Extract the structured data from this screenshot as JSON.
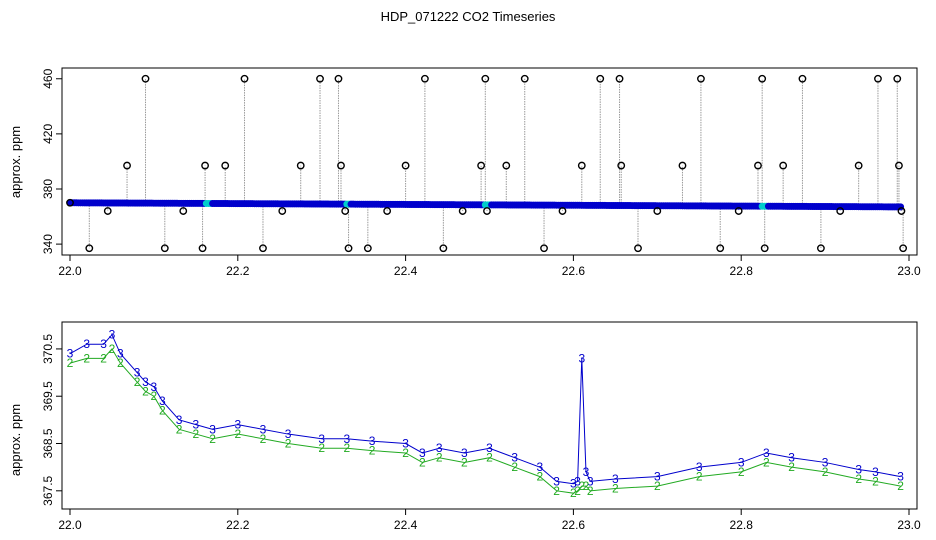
{
  "title": "HDP_071222  CO2 Timeseries",
  "colors": {
    "primary": "#0000cc",
    "secondary": "#22aa22",
    "highlight": "#00cccc",
    "spike": "#000000",
    "line": "#9a9a9a"
  },
  "chart_data": [
    {
      "type": "scatter",
      "title": "",
      "xlabel": "",
      "ylabel": "approx. ppm",
      "xlim": [
        22.0,
        23.0
      ],
      "ylim": [
        335,
        462
      ],
      "xticks": [
        22.0,
        22.2,
        22.4,
        22.6,
        22.8,
        23.0
      ],
      "yticks": [
        340,
        380,
        420,
        460
      ],
      "series": [
        {
          "marker": "filled-circle",
          "color": "#0000cc",
          "x_range": [
            22.0,
            22.99
          ],
          "values_start": 370,
          "values_end": 367
        },
        {
          "marker": "open-circle",
          "color": "#000000",
          "x": [
            22.0,
            22.023,
            22.045,
            22.068,
            22.09,
            22.113,
            22.135,
            22.158,
            22.161,
            22.185,
            22.208,
            22.23,
            22.253,
            22.275,
            22.298,
            22.32,
            22.323,
            22.328,
            22.332,
            22.355,
            22.378,
            22.4,
            22.423,
            22.445,
            22.468,
            22.49,
            22.495,
            22.497,
            22.52,
            22.542,
            22.565,
            22.587,
            22.61,
            22.632,
            22.655,
            22.657,
            22.677,
            22.7,
            22.73,
            22.752,
            22.775,
            22.797,
            22.82,
            22.825,
            22.828,
            22.85,
            22.873,
            22.895,
            22.918,
            22.94,
            22.963,
            22.986,
            22.988,
            22.991,
            22.993
          ],
          "values": [
            370,
            337,
            364,
            397,
            460,
            337,
            364,
            337,
            397,
            397,
            460,
            337,
            364,
            397,
            460,
            460,
            397,
            364,
            337,
            337,
            364,
            397,
            460,
            337,
            364,
            397,
            460,
            364,
            397,
            460,
            337,
            364,
            397,
            460,
            460,
            397,
            337,
            364,
            397,
            460,
            337,
            364,
            397,
            460,
            337,
            397,
            460,
            337,
            364,
            397,
            460,
            460,
            397,
            364,
            337
          ]
        }
      ]
    },
    {
      "type": "line",
      "title": "",
      "xlabel": "",
      "ylabel": "approx. ppm",
      "xlim": [
        22.0,
        23.0
      ],
      "ylim": [
        367.2,
        370.9
      ],
      "xticks": [
        22.0,
        22.2,
        22.4,
        22.6,
        22.8,
        23.0
      ],
      "yticks": [
        367.5,
        368.5,
        369.5,
        370.5
      ],
      "series": [
        {
          "label": "3",
          "color": "#0000cc",
          "x": [
            22.0,
            22.02,
            22.04,
            22.05,
            22.06,
            22.08,
            22.09,
            22.1,
            22.11,
            22.13,
            22.15,
            22.17,
            22.2,
            22.23,
            22.26,
            22.3,
            22.33,
            22.36,
            22.4,
            22.42,
            22.44,
            22.47,
            22.5,
            22.53,
            22.56,
            22.58,
            22.6,
            22.605,
            22.61,
            22.615,
            22.62,
            22.65,
            22.7,
            22.75,
            22.8,
            22.83,
            22.86,
            22.9,
            22.94,
            22.96,
            22.99
          ],
          "values": [
            370.4,
            370.6,
            370.6,
            370.8,
            370.4,
            370.0,
            369.8,
            369.7,
            369.4,
            369.0,
            368.9,
            368.8,
            368.9,
            368.8,
            368.7,
            368.6,
            368.6,
            368.55,
            368.5,
            368.3,
            368.4,
            368.3,
            368.4,
            368.2,
            368.0,
            367.7,
            367.65,
            367.7,
            370.3,
            367.9,
            367.7,
            367.75,
            367.8,
            368.0,
            368.1,
            368.3,
            368.2,
            368.1,
            367.95,
            367.9,
            367.8
          ]
        },
        {
          "label": "2",
          "color": "#22aa22",
          "x": [
            22.0,
            22.02,
            22.04,
            22.05,
            22.06,
            22.08,
            22.09,
            22.1,
            22.11,
            22.13,
            22.15,
            22.17,
            22.2,
            22.23,
            22.26,
            22.3,
            22.33,
            22.36,
            22.4,
            22.42,
            22.44,
            22.47,
            22.5,
            22.53,
            22.56,
            22.58,
            22.6,
            22.605,
            22.61,
            22.615,
            22.62,
            22.65,
            22.7,
            22.75,
            22.8,
            22.83,
            22.86,
            22.9,
            22.94,
            22.96,
            22.99
          ],
          "values": [
            370.2,
            370.3,
            370.3,
            370.5,
            370.2,
            369.8,
            369.6,
            369.5,
            369.2,
            368.8,
            368.7,
            368.6,
            368.7,
            368.6,
            368.5,
            368.4,
            368.4,
            368.35,
            368.3,
            368.1,
            368.2,
            368.1,
            368.2,
            368.0,
            367.8,
            367.5,
            367.45,
            367.5,
            367.6,
            367.6,
            367.5,
            367.55,
            367.6,
            367.8,
            367.9,
            368.1,
            368.0,
            367.9,
            367.75,
            367.7,
            367.6
          ]
        }
      ]
    }
  ]
}
